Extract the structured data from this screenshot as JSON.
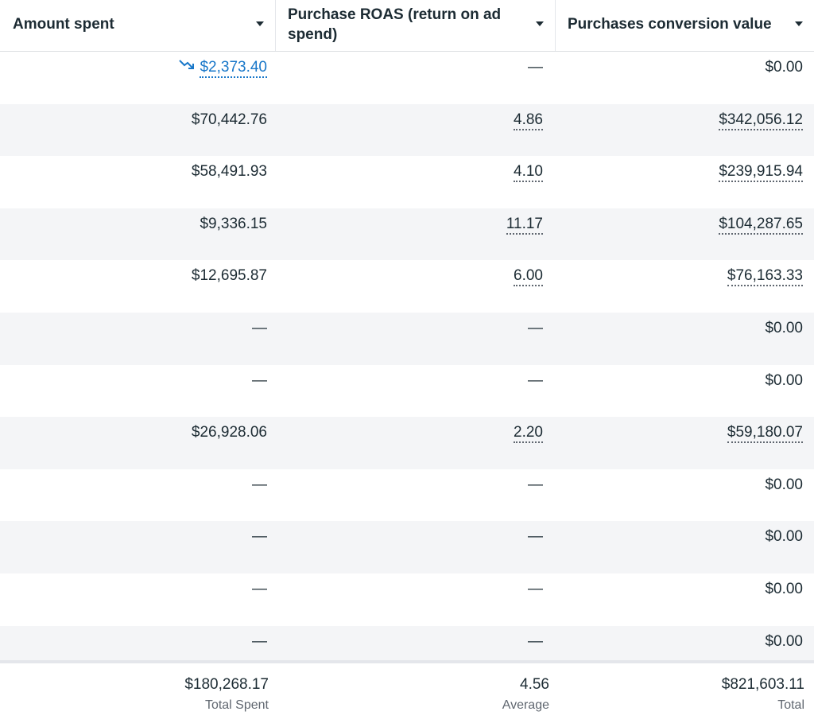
{
  "columns": [
    {
      "label": "Amount spent"
    },
    {
      "label": "Purchase ROAS (return on ad spend)"
    },
    {
      "label": "Purchases conversion value"
    }
  ],
  "rows": [
    {
      "amount": "$2,373.40",
      "roas": "—",
      "value": "$0.00"
    },
    {
      "amount": "$70,442.76",
      "roas": "4.86",
      "value": "$342,056.12"
    },
    {
      "amount": "$58,491.93",
      "roas": "4.10",
      "value": "$239,915.94"
    },
    {
      "amount": "$9,336.15",
      "roas": "11.17",
      "value": "$104,287.65"
    },
    {
      "amount": "$12,695.87",
      "roas": "6.00",
      "value": "$76,163.33"
    },
    {
      "amount": "—",
      "roas": "—",
      "value": "$0.00"
    },
    {
      "amount": "—",
      "roas": "—",
      "value": "$0.00"
    },
    {
      "amount": "$26,928.06",
      "roas": "2.20",
      "value": "$59,180.07"
    },
    {
      "amount": "—",
      "roas": "—",
      "value": "$0.00"
    },
    {
      "amount": "—",
      "roas": "—",
      "value": "$0.00"
    },
    {
      "amount": "—",
      "roas": "—",
      "value": "$0.00"
    },
    {
      "amount": "—",
      "roas": "—",
      "value": "$0.00"
    }
  ],
  "totals": {
    "amount": {
      "value": "$180,268.17",
      "label": "Total Spent"
    },
    "roas": {
      "value": "4.56",
      "label": "Average"
    },
    "value": {
      "value": "$821,603.11",
      "label": "Total"
    }
  },
  "colors": {
    "link_blue": "#1877c9",
    "text": "#1c2b33",
    "row_alt": "#f4f5f7"
  },
  "icons": {
    "trend": "trend-down-icon",
    "sort": "caret-down-icon"
  }
}
